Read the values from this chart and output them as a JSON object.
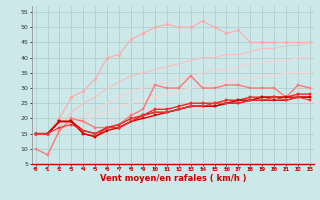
{
  "title": "",
  "xlabel": "Vent moyen/en rafales ( km/h )",
  "background_color": "#cce8e8",
  "grid_color": "#aacccc",
  "x": [
    0,
    1,
    2,
    3,
    4,
    5,
    6,
    7,
    8,
    9,
    10,
    11,
    12,
    13,
    14,
    15,
    16,
    17,
    18,
    19,
    20,
    21,
    22,
    23
  ],
  "lines": [
    {
      "color": "#ffaaaa",
      "linewidth": 0.8,
      "marker": "o",
      "markersize": 2.0,
      "linestyle": "-",
      "values": [
        15,
        15,
        20,
        27,
        29,
        33,
        40,
        41,
        46,
        48,
        50,
        51,
        50,
        50,
        52,
        50,
        48,
        49,
        45,
        45,
        45,
        45,
        45,
        45
      ]
    },
    {
      "color": "#ffbbbb",
      "linewidth": 0.8,
      "marker": null,
      "linestyle": "-",
      "values": [
        15,
        15,
        17,
        22,
        25,
        27,
        30,
        32,
        34,
        35,
        36,
        37,
        38,
        39,
        40,
        40,
        41,
        41,
        42,
        43,
        43,
        44,
        44,
        45
      ]
    },
    {
      "color": "#ffcccc",
      "linewidth": 0.8,
      "marker": null,
      "linestyle": "-",
      "values": [
        15,
        15,
        16,
        19,
        21,
        23,
        25,
        27,
        29,
        30,
        31,
        32,
        33,
        34,
        35,
        36,
        36,
        37,
        38,
        38,
        39,
        39,
        40,
        40
      ]
    },
    {
      "color": "#ffd5d5",
      "linewidth": 0.8,
      "marker": null,
      "linestyle": "-",
      "values": [
        15,
        15,
        16,
        18,
        19,
        21,
        22,
        24,
        25,
        26,
        27,
        28,
        29,
        30,
        31,
        31,
        32,
        33,
        33,
        34,
        34,
        35,
        35,
        35
      ]
    },
    {
      "color": "#ff7777",
      "linewidth": 1.0,
      "marker": "s",
      "markersize": 2.0,
      "linestyle": "-",
      "values": [
        10,
        8,
        16,
        20,
        19,
        17,
        17,
        18,
        21,
        23,
        31,
        30,
        30,
        34,
        30,
        30,
        31,
        31,
        30,
        30,
        30,
        27,
        31,
        30
      ]
    },
    {
      "color": "#ff2222",
      "linewidth": 1.0,
      "marker": "s",
      "markersize": 2.0,
      "linestyle": "-",
      "values": [
        15,
        15,
        19,
        19,
        15,
        14,
        17,
        18,
        20,
        21,
        23,
        23,
        24,
        25,
        25,
        25,
        26,
        26,
        27,
        27,
        27,
        27,
        28,
        28
      ]
    },
    {
      "color": "#dd0000",
      "linewidth": 1.0,
      "marker": "s",
      "markersize": 2.0,
      "linestyle": "-",
      "values": [
        15,
        15,
        19,
        19,
        15,
        14,
        16,
        17,
        19,
        20,
        21,
        22,
        23,
        24,
        24,
        24,
        25,
        25,
        26,
        26,
        26,
        26,
        27,
        27
      ]
    },
    {
      "color": "#cc0000",
      "linewidth": 1.0,
      "marker": "s",
      "markersize": 2.0,
      "linestyle": "-",
      "values": [
        15,
        15,
        19,
        19,
        16,
        15,
        17,
        17,
        19,
        21,
        22,
        22,
        23,
        24,
        24,
        24,
        25,
        26,
        26,
        27,
        27,
        27,
        27,
        27
      ]
    },
    {
      "color": "#ee3333",
      "linewidth": 0.8,
      "marker": "s",
      "markersize": 2.0,
      "linestyle": "-",
      "values": [
        15,
        15,
        17,
        18,
        16,
        15,
        17,
        17,
        19,
        21,
        22,
        22,
        23,
        24,
        24,
        25,
        25,
        25,
        26,
        26,
        27,
        26,
        27,
        26
      ]
    }
  ],
  "ylim": [
    5,
    57
  ],
  "xlim": [
    -0.3,
    23.3
  ],
  "yticks": [
    5,
    10,
    15,
    20,
    25,
    30,
    35,
    40,
    45,
    50,
    55
  ],
  "xticks": [
    0,
    1,
    2,
    3,
    4,
    5,
    6,
    7,
    8,
    9,
    10,
    11,
    12,
    13,
    14,
    15,
    16,
    17,
    18,
    19,
    20,
    21,
    22,
    23
  ]
}
